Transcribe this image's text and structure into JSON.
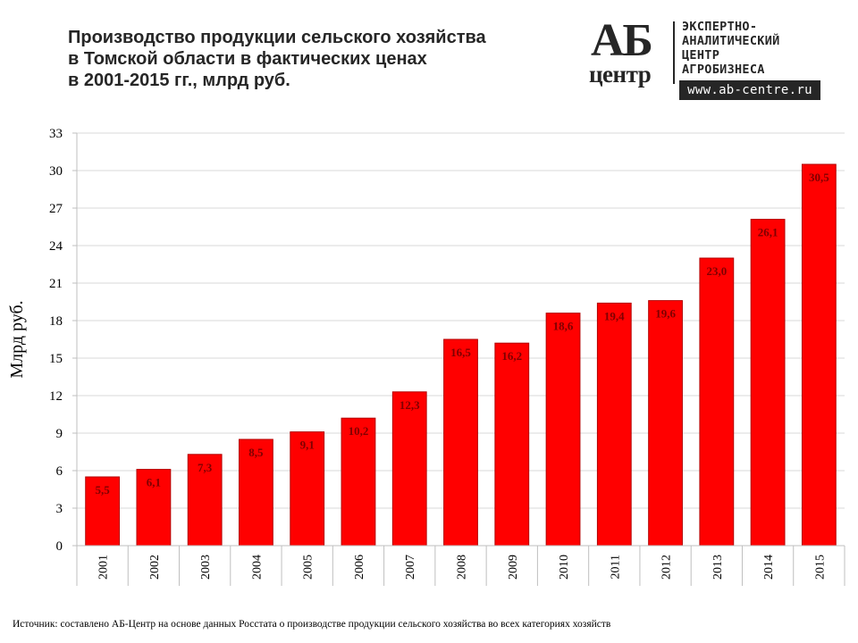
{
  "title_lines": [
    "Производство продукции сельского хозяйства",
    "в Томской области в фактических ценах",
    "в 2001-2015 гг., млрд руб."
  ],
  "logo": {
    "mark_top": "АБ",
    "mark_bottom": "центр",
    "text_lines": [
      "ЭКСПЕРТНО-",
      "АНАЛИТИЧЕСКИЙ",
      "ЦЕНТР",
      "АГРОБИЗНЕСА"
    ],
    "url": "www.ab-centre.ru"
  },
  "source": "Источник: составлено АБ-Центр на основе данных Росстата о производстве продукции сельского хозяйства во всех категориях хозяйств",
  "colors": {
    "bar": "#ff0000",
    "bar_edge": "#b30000",
    "label": "#7f0000",
    "grid": "#d9d9d9",
    "axis": "#bfbfbf"
  },
  "chart_data": {
    "type": "bar",
    "title": "Производство продукции сельского хозяйства в Томской области в фактических ценах в 2001-2015 гг., млрд руб.",
    "xlabel": "",
    "ylabel": "Млрд руб.",
    "ylim": [
      0,
      33
    ],
    "yticks": [
      0,
      3,
      6,
      9,
      12,
      15,
      18,
      21,
      24,
      27,
      30,
      33
    ],
    "grid": true,
    "legend": "none",
    "categories": [
      "2001",
      "2002",
      "2003",
      "2004",
      "2005",
      "2006",
      "2007",
      "2008",
      "2009",
      "2010",
      "2011",
      "2012",
      "2013",
      "2014",
      "2015"
    ],
    "values": [
      5.5,
      6.1,
      7.3,
      8.5,
      9.1,
      10.2,
      12.3,
      16.5,
      16.2,
      18.6,
      19.4,
      19.6,
      23.0,
      26.1,
      30.5
    ],
    "value_labels": [
      "5,5",
      "6,1",
      "7,3",
      "8,5",
      "9,1",
      "10,2",
      "12,3",
      "16,5",
      "16,2",
      "18,6",
      "19,4",
      "19,6",
      "23,0",
      "26,1",
      "30,5"
    ]
  }
}
